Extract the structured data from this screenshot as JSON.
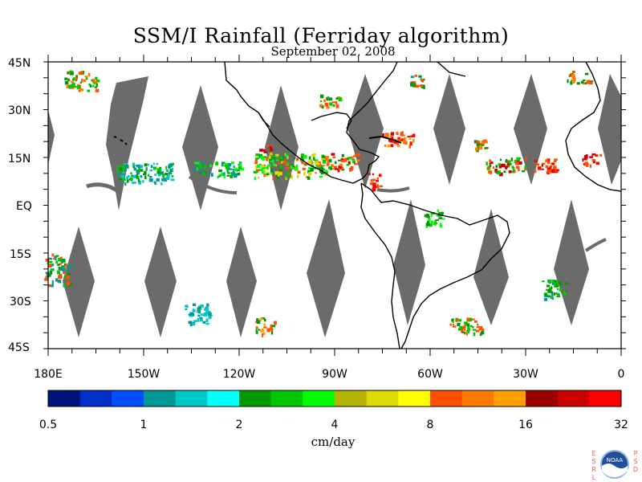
{
  "title": "SSM/I Rainfall (Ferriday algorithm)",
  "subtitle": "September 02, 2008",
  "map": {
    "lat_labels": [
      "45N",
      "30N",
      "15N",
      "EQ",
      "15S",
      "30S",
      "45S"
    ],
    "lon_labels": [
      "180E",
      "150W",
      "120W",
      "90W",
      "60W",
      "30W",
      "0"
    ],
    "missing_data_color": "#6b6b6b"
  },
  "colorbar": {
    "unit": "cm/day",
    "tick_labels": [
      "0.5",
      "1",
      "2",
      "4",
      "8",
      "16",
      "32"
    ],
    "colors": [
      "#00127a",
      "#0030c8",
      "#0050ff",
      "#009898",
      "#00c8c8",
      "#00ffff",
      "#009a00",
      "#00c800",
      "#00ff00",
      "#b4b400",
      "#dcdc00",
      "#ffff00",
      "#ff5000",
      "#ff7a00",
      "#ffa000",
      "#9a0000",
      "#cc0000",
      "#ff0000"
    ]
  },
  "logo": {
    "center_text": "NOAA",
    "left_text": "ESRL",
    "right_text": "PSD",
    "accent_color": "#e05a5a"
  }
}
